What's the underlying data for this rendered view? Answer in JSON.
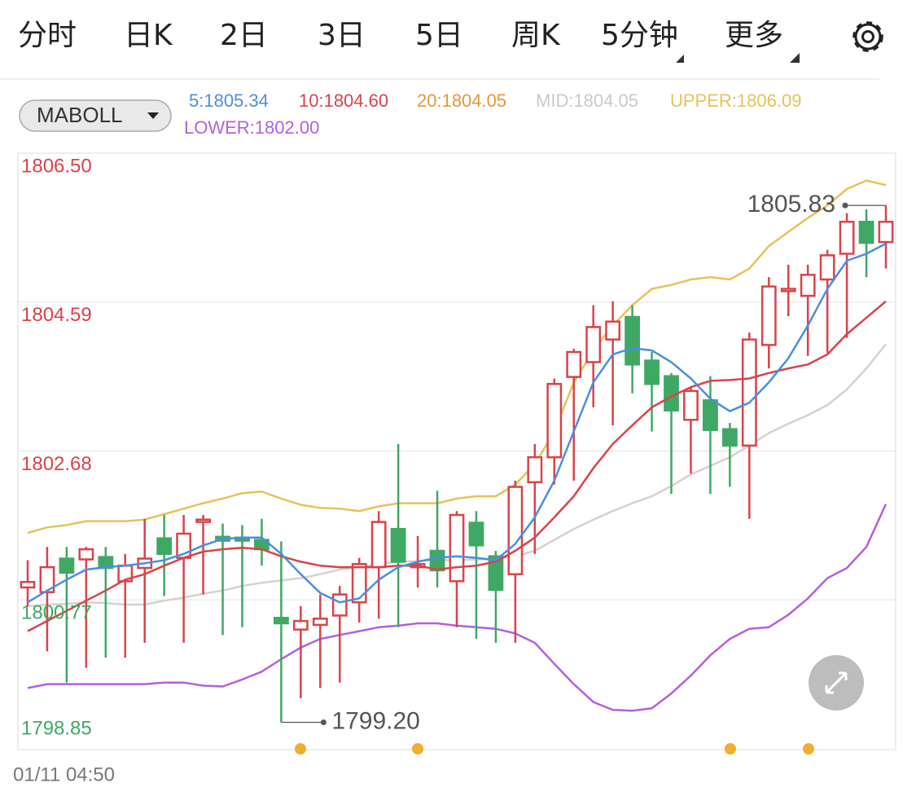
{
  "tabs": [
    "分时",
    "日K",
    "2日",
    "3日",
    "5日",
    "周K",
    "5分钟",
    "更多"
  ],
  "active_tab_index": 6,
  "active_color": "#3f7fdc",
  "indicator": "MABOLL",
  "legend": [
    {
      "text": "5:1805.34",
      "color": "#4a8fe0"
    },
    {
      "text": "10:1804.60",
      "color": "#d9434a"
    },
    {
      "text": "20:1804.05",
      "color": "#e8963a"
    },
    {
      "text": "MID:1804.05",
      "color": "#c9c9c9"
    },
    {
      "text": "UPPER:1806.09",
      "color": "#e8c25a"
    },
    {
      "text": "LOWER:1802.00",
      "color": "#b45ee0"
    }
  ],
  "time_label": "01/11 04:50",
  "chart_data": {
    "type": "candlestick",
    "ylim": [
      1798.85,
      1806.5
    ],
    "yticks": [
      1798.85,
      1800.77,
      1802.68,
      1804.59,
      {
        "value": 1806.5,
        "label": "1806.50"
      }
    ],
    "ytick_colors": [
      "#3fa865",
      "#3fa865",
      "#d9434a",
      "#d9434a",
      "#d9434a"
    ],
    "grid": true,
    "up_color": "#d9434a",
    "down_color": "#3fa865",
    "open": [
      1800.93,
      1800.87,
      1801.3,
      1801.29,
      1801.32,
      1801.01,
      1801.18,
      1801.56,
      1801.31,
      1801.77,
      1801.58,
      1801.57,
      1801.54,
      1800.54,
      1800.39,
      1800.45,
      1800.57,
      1800.74,
      1801.19,
      1801.68,
      1801.19,
      1801.4,
      1801.01,
      1801.76,
      1801.33,
      1801.1,
      1802.28,
      1802.6,
      1803.63,
      1803.82,
      1804.11,
      1804.4,
      1803.84,
      1803.64,
      1803.08,
      1803.33,
      1802.96,
      1802.75,
      1804.04,
      1804.73,
      1804.67,
      1804.88,
      1805.21,
      1805.62,
      1805.36
    ],
    "high": [
      1801.28,
      1801.45,
      1801.45,
      1801.45,
      1801.45,
      1801.36,
      1801.81,
      1801.86,
      1801.86,
      1801.86,
      1801.75,
      1801.73,
      1801.81,
      1801.52,
      1800.69,
      1800.84,
      1800.95,
      1801.31,
      1801.91,
      1802.77,
      1801.59,
      1802.17,
      1801.91,
      1801.91,
      1801.4,
      1802.3,
      1802.77,
      1803.61,
      1803.99,
      1804.55,
      1804.6,
      1804.55,
      1803.95,
      1803.68,
      1803.5,
      1803.64,
      1803.04,
      1804.2,
      1804.91,
      1805.07,
      1805.07,
      1805.26,
      1805.73,
      1805.78,
      1805.83
    ],
    "low": [
      1800.69,
      1800.11,
      1799.71,
      1799.9,
      1800.03,
      1800.03,
      1800.22,
      1800.82,
      1800.22,
      1800.84,
      1800.32,
      1800.42,
      1801.21,
      1799.2,
      1799.51,
      1799.64,
      1799.71,
      1800.48,
      1800.53,
      1800.42,
      1800.93,
      1800.93,
      1800.42,
      1800.27,
      1800.22,
      1800.22,
      1801.36,
      1802.25,
      1802.3,
      1803.24,
      1803.01,
      1803.42,
      1802.93,
      1802.13,
      1802.39,
      1802.13,
      1802.22,
      1801.81,
      1803.74,
      1804.41,
      1803.9,
      1803.94,
      1804.13,
      1804.91,
      1805.02
    ],
    "close": [
      1801.0,
      1801.19,
      1801.12,
      1801.42,
      1801.18,
      1801.21,
      1801.3,
      1801.36,
      1801.62,
      1801.8,
      1801.53,
      1801.53,
      1801.42,
      1800.47,
      1800.5,
      1800.53,
      1800.84,
      1801.23,
      1801.77,
      1801.26,
      1801.23,
      1801.15,
      1801.86,
      1801.47,
      1800.9,
      1802.22,
      1802.6,
      1803.54,
      1803.95,
      1804.27,
      1804.34,
      1803.79,
      1803.54,
      1803.2,
      1803.45,
      1802.95,
      1802.75,
      1804.11,
      1804.79,
      1804.76,
      1804.94,
      1805.19,
      1805.62,
      1805.35,
      1805.62
    ],
    "series": [
      {
        "color": "#e8c25a",
        "values": [
          1801.63,
          1801.7,
          1801.73,
          1801.78,
          1801.78,
          1801.78,
          1801.8,
          1801.87,
          1801.94,
          1802.01,
          1802.07,
          1802.14,
          1802.16,
          1802.07,
          1801.99,
          1801.95,
          1801.94,
          1801.91,
          1801.97,
          1802.01,
          1802.01,
          1802.01,
          1802.07,
          1802.1,
          1802.1,
          1802.25,
          1802.51,
          1802.93,
          1803.56,
          1803.97,
          1804.29,
          1804.55,
          1804.76,
          1804.81,
          1804.88,
          1804.91,
          1804.88,
          1805.02,
          1805.31,
          1805.49,
          1805.67,
          1805.83,
          1806.04,
          1806.15,
          1806.09
        ]
      },
      {
        "color": "#d6d2ca",
        "values": [
          1800.69,
          1800.71,
          1800.72,
          1800.74,
          1800.73,
          1800.71,
          1800.71,
          1800.76,
          1800.8,
          1800.85,
          1800.89,
          1800.95,
          1800.99,
          1801.02,
          1801.05,
          1801.1,
          1801.16,
          1801.19,
          1801.23,
          1801.26,
          1801.27,
          1801.28,
          1801.28,
          1801.29,
          1801.3,
          1801.33,
          1801.4,
          1801.54,
          1801.68,
          1801.8,
          1801.91,
          1802.01,
          1802.1,
          1802.23,
          1802.38,
          1802.49,
          1802.6,
          1802.75,
          1802.91,
          1803.03,
          1803.14,
          1803.27,
          1803.47,
          1803.74,
          1804.05
        ]
      },
      {
        "color": "#b45ee0",
        "values": [
          1799.64,
          1799.69,
          1799.69,
          1799.69,
          1799.69,
          1799.69,
          1799.69,
          1799.71,
          1799.71,
          1799.67,
          1799.66,
          1799.75,
          1799.85,
          1800.01,
          1800.16,
          1800.27,
          1800.32,
          1800.37,
          1800.42,
          1800.44,
          1800.47,
          1800.47,
          1800.44,
          1800.42,
          1800.4,
          1800.34,
          1800.22,
          1799.95,
          1799.69,
          1799.46,
          1799.36,
          1799.35,
          1799.38,
          1799.57,
          1799.8,
          1800.06,
          1800.27,
          1800.4,
          1800.42,
          1800.58,
          1800.79,
          1801.05,
          1801.18,
          1801.45,
          1802.0
        ]
      },
      {
        "color": "#d9434a",
        "values": [
          1800.37,
          1800.5,
          1800.63,
          1800.76,
          1800.89,
          1801.03,
          1801.1,
          1801.21,
          1801.31,
          1801.39,
          1801.42,
          1801.44,
          1801.42,
          1801.33,
          1801.26,
          1801.21,
          1801.19,
          1801.19,
          1801.19,
          1801.21,
          1801.21,
          1801.16,
          1801.19,
          1801.21,
          1801.26,
          1801.4,
          1801.57,
          1801.83,
          1802.1,
          1802.46,
          1802.77,
          1803.01,
          1803.24,
          1803.38,
          1803.5,
          1803.58,
          1803.59,
          1803.61,
          1803.68,
          1803.74,
          1803.79,
          1803.92,
          1804.18,
          1804.39,
          1804.6
        ]
      },
      {
        "color": "#4a8fe0",
        "values": [
          1800.74,
          1800.89,
          1801.03,
          1801.16,
          1801.19,
          1801.21,
          1801.24,
          1801.28,
          1801.36,
          1801.47,
          1801.55,
          1801.57,
          1801.57,
          1801.36,
          1801.1,
          1800.86,
          1800.74,
          1800.79,
          1801.03,
          1801.19,
          1801.26,
          1801.31,
          1801.33,
          1801.31,
          1801.28,
          1801.49,
          1801.83,
          1802.3,
          1802.93,
          1803.56,
          1803.92,
          1804.0,
          1803.97,
          1803.82,
          1803.61,
          1803.35,
          1803.19,
          1803.3,
          1803.56,
          1803.87,
          1804.29,
          1804.76,
          1805.12,
          1805.21,
          1805.34
        ]
      }
    ],
    "high_label": 1805.83,
    "low_label": {
      "value": 1799.2,
      "label": "1799.20"
    }
  }
}
